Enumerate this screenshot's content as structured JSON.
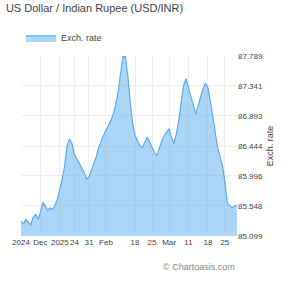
{
  "chart_data": {
    "type": "area",
    "title": "US Dollar / Indian Rupee (USD/INR)",
    "ylabel": "Exch. rate",
    "annotations": [
      "© Chartoasis.com"
    ],
    "categories": [
      "2024",
      null,
      null,
      null,
      null,
      null,
      null,
      null,
      "Dec",
      null,
      null,
      null,
      null,
      null,
      null,
      null,
      "2025",
      null,
      null,
      null,
      null,
      null,
      "24",
      null,
      null,
      null,
      null,
      null,
      "31",
      null,
      null,
      null,
      null,
      null,
      null,
      "Feb",
      null,
      null,
      null,
      null,
      null,
      null,
      null,
      null,
      null,
      null,
      null,
      "18",
      null,
      null,
      null,
      null,
      null,
      null,
      "25",
      null,
      null,
      null,
      null,
      null,
      null,
      "Mar",
      null,
      null,
      null,
      null,
      null,
      null,
      null,
      "11",
      null,
      null,
      null,
      null,
      null,
      null,
      null,
      "18",
      null,
      null,
      null,
      null,
      null,
      null,
      "25",
      null,
      null,
      null,
      null,
      null
    ],
    "series": [
      {
        "name": "Exch. rate",
        "color": "#5aabee",
        "values": [
          85.32,
          85.28,
          85.35,
          85.3,
          85.26,
          85.38,
          85.42,
          85.35,
          85.45,
          85.6,
          85.55,
          85.48,
          85.52,
          85.5,
          85.55,
          85.65,
          85.8,
          85.95,
          86.15,
          86.45,
          86.55,
          86.48,
          86.32,
          86.25,
          86.18,
          86.1,
          86.05,
          85.95,
          85.98,
          86.08,
          86.18,
          86.28,
          86.42,
          86.52,
          86.6,
          86.68,
          86.75,
          86.82,
          86.92,
          87.05,
          87.25,
          87.55,
          87.78,
          87.78,
          87.5,
          87.1,
          86.78,
          86.6,
          86.52,
          86.45,
          86.42,
          86.5,
          86.58,
          86.5,
          86.42,
          86.35,
          86.3,
          86.42,
          86.52,
          86.6,
          86.65,
          86.7,
          86.58,
          86.48,
          86.62,
          86.82,
          87.1,
          87.35,
          87.45,
          87.32,
          87.18,
          87.05,
          86.92,
          87.05,
          87.18,
          87.3,
          87.38,
          87.32,
          87.12,
          86.88,
          86.65,
          86.42,
          86.28,
          86.15,
          85.92,
          85.6,
          85.55,
          85.52,
          85.55,
          85.55
        ]
      }
    ],
    "ylim": [
      85.099,
      87.789
    ],
    "yticks": [
      85.099,
      85.548,
      85.996,
      86.444,
      86.893,
      87.341,
      87.789
    ],
    "grid": true,
    "legend": "top left"
  }
}
